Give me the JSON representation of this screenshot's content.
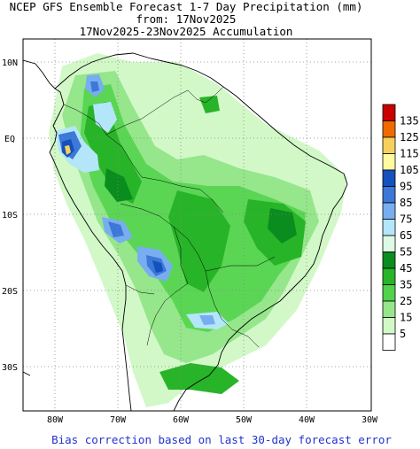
{
  "title": {
    "line1": "NCEP GFS Ensemble Forecast 1-7 Day Precipitation (mm)",
    "line2": "from: 17Nov2025",
    "line3": "17Nov2025-23Nov2025 Accumulation"
  },
  "axes": {
    "lat_labels": [
      "10N",
      "EQ",
      "10S",
      "20S",
      "30S"
    ],
    "lon_labels": [
      "80W",
      "70W",
      "60W",
      "50W",
      "40W",
      "30W"
    ]
  },
  "legend": {
    "units": "mm",
    "levels": [
      {
        "label": "135",
        "color": "#c80000"
      },
      {
        "label": "125",
        "color": "#f06a00"
      },
      {
        "label": "115",
        "color": "#f6d05a"
      },
      {
        "label": "105",
        "color": "#fffaa0"
      },
      {
        "label": "95",
        "color": "#1450be"
      },
      {
        "label": "85",
        "color": "#3c78d8"
      },
      {
        "label": "75",
        "color": "#78aef0"
      },
      {
        "label": "65",
        "color": "#b4e6fa"
      },
      {
        "label": "55",
        "color": "#dcfae6"
      },
      {
        "label": "45",
        "color": "#0a8c1e"
      },
      {
        "label": "35",
        "color": "#28b428"
      },
      {
        "label": "25",
        "color": "#50d24a"
      },
      {
        "label": "15",
        "color": "#96e68c"
      },
      {
        "label": "5",
        "color": "#d2f8c8"
      },
      {
        "label": "",
        "color": "#ffffff"
      }
    ]
  },
  "footer": "Bias correction based on last 30-day forecast error"
}
